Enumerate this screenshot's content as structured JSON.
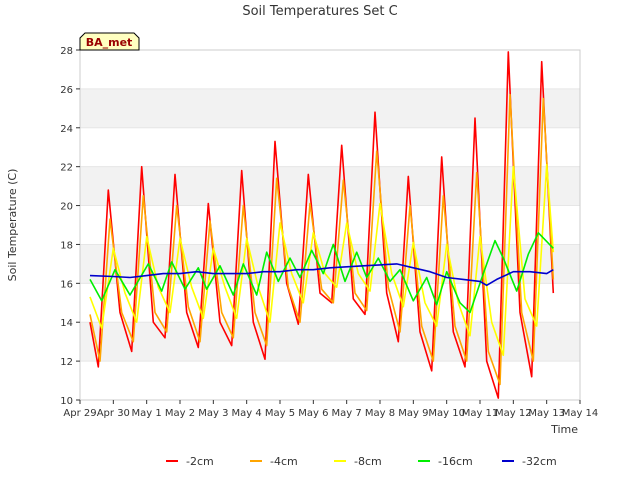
{
  "chart_data": {
    "type": "line",
    "title": "Soil Temperatures Set C",
    "xlabel": "Time",
    "ylabel": "Soil Temperature (C)",
    "ylim": [
      10,
      28
    ],
    "yticks": [
      10,
      12,
      14,
      16,
      18,
      20,
      22,
      24,
      26,
      28
    ],
    "xlim": [
      0,
      15
    ],
    "xticks": [
      0,
      1,
      2,
      3,
      4,
      5,
      6,
      7,
      8,
      9,
      10,
      11,
      12,
      13,
      14,
      15
    ],
    "xtick_labels": [
      "Apr 29",
      "Apr 30",
      "May 1",
      "May 2",
      "May 3",
      "May 4",
      "May 5",
      "May 6",
      "May 7",
      "May 8",
      "May 9",
      "May 10",
      "May 11",
      "May 12",
      "May 13",
      "May 14"
    ],
    "station_label": "BA_met",
    "grid": "horizontal bands",
    "legend_position": "bottom",
    "series": [
      {
        "name": "-2cm",
        "color": "#ff0000",
        "x": [
          0.3,
          0.55,
          0.85,
          1.2,
          1.55,
          1.85,
          2.2,
          2.55,
          2.85,
          3.2,
          3.55,
          3.85,
          4.2,
          4.55,
          4.85,
          5.2,
          5.55,
          5.85,
          6.2,
          6.55,
          6.85,
          7.2,
          7.55,
          7.85,
          8.2,
          8.55,
          8.85,
          9.2,
          9.55,
          9.85,
          10.2,
          10.55,
          10.85,
          11.2,
          11.55,
          11.85,
          12.2,
          12.55,
          12.85,
          13.2,
          13.55,
          13.85,
          14.2
        ],
        "values": [
          14.0,
          11.7,
          20.8,
          14.5,
          12.5,
          22.0,
          14.0,
          13.2,
          21.6,
          14.5,
          12.7,
          20.1,
          14.0,
          12.8,
          21.8,
          14.0,
          12.1,
          23.3,
          16.0,
          13.9,
          21.6,
          15.5,
          15.0,
          23.1,
          15.2,
          14.4,
          24.8,
          15.5,
          13.0,
          21.5,
          13.5,
          11.5,
          22.5,
          13.5,
          11.7,
          24.5,
          12.0,
          10.1,
          27.9,
          14.5,
          11.2,
          27.4,
          15.5
        ]
      },
      {
        "name": "-4cm",
        "color": "#ffa500",
        "x": [
          0.3,
          0.6,
          0.9,
          1.25,
          1.6,
          1.9,
          2.25,
          2.6,
          2.9,
          3.25,
          3.6,
          3.9,
          4.25,
          4.6,
          4.9,
          5.25,
          5.6,
          5.9,
          6.25,
          6.6,
          6.9,
          7.25,
          7.6,
          7.9,
          8.25,
          8.6,
          8.9,
          9.25,
          9.6,
          9.9,
          10.25,
          10.6,
          10.9,
          11.25,
          11.6,
          11.9,
          12.25,
          12.6,
          12.9,
          13.25,
          13.6,
          13.9,
          14.2
        ],
        "values": [
          14.4,
          12.0,
          19.3,
          14.5,
          13.0,
          20.5,
          14.5,
          13.5,
          20.0,
          14.8,
          13.0,
          19.2,
          14.5,
          13.2,
          20.0,
          14.5,
          12.8,
          21.4,
          15.8,
          14.0,
          20.1,
          15.7,
          15.0,
          21.3,
          15.5,
          14.6,
          22.8,
          15.8,
          13.5,
          20.0,
          13.8,
          12.0,
          20.5,
          13.8,
          12.0,
          21.7,
          12.5,
          10.8,
          25.7,
          14.5,
          12.0,
          25.5,
          16.2
        ]
      },
      {
        "name": "-8cm",
        "color": "#ffff00",
        "x": [
          0.3,
          0.65,
          1.0,
          1.35,
          1.7,
          2.0,
          2.35,
          2.7,
          3.0,
          3.35,
          3.7,
          4.0,
          4.35,
          4.7,
          5.0,
          5.35,
          5.7,
          6.0,
          6.35,
          6.7,
          7.0,
          7.35,
          7.7,
          8.0,
          8.35,
          8.7,
          9.0,
          9.35,
          9.7,
          10.0,
          10.35,
          10.7,
          11.0,
          11.35,
          11.7,
          12.0,
          12.35,
          12.7,
          13.0,
          13.35,
          13.7,
          14.0,
          14.2
        ],
        "values": [
          15.3,
          13.7,
          17.8,
          15.5,
          14.0,
          18.4,
          15.8,
          14.5,
          18.3,
          15.8,
          14.2,
          17.8,
          15.8,
          14.2,
          18.3,
          15.8,
          14.0,
          19.1,
          16.5,
          15.0,
          18.6,
          16.5,
          15.8,
          19.1,
          16.5,
          15.6,
          20.1,
          16.5,
          14.8,
          18.1,
          15.0,
          13.8,
          18.0,
          15.0,
          13.3,
          18.4,
          14.0,
          12.3,
          22.0,
          15.2,
          13.8,
          22.1,
          17.6
        ]
      },
      {
        "name": "-16cm",
        "color": "#00ee00",
        "x": [
          0.3,
          0.65,
          1.05,
          1.5,
          2.05,
          2.45,
          2.75,
          3.15,
          3.55,
          3.8,
          4.2,
          4.6,
          4.9,
          5.3,
          5.6,
          5.95,
          6.3,
          6.6,
          6.95,
          7.3,
          7.6,
          7.95,
          8.3,
          8.6,
          8.95,
          9.3,
          9.6,
          10.0,
          10.4,
          10.7,
          11.0,
          11.4,
          11.7,
          12.1,
          12.45,
          12.7,
          13.1,
          13.45,
          13.75,
          14.2
        ],
        "values": [
          16.2,
          15.1,
          16.7,
          15.4,
          17.0,
          15.6,
          17.1,
          15.7,
          16.8,
          15.7,
          16.9,
          15.4,
          17.0,
          15.4,
          17.6,
          16.1,
          17.3,
          16.3,
          17.7,
          16.5,
          18.0,
          16.1,
          17.6,
          16.3,
          17.3,
          16.1,
          16.7,
          15.1,
          16.3,
          14.9,
          16.6,
          15.0,
          14.5,
          16.5,
          18.2,
          17.3,
          15.6,
          17.5,
          18.6,
          17.8
        ]
      },
      {
        "name": "-32cm",
        "color": "#0000cc",
        "x": [
          0.3,
          1.0,
          1.5,
          2.0,
          2.5,
          3.0,
          3.5,
          4.0,
          4.5,
          5.0,
          5.5,
          6.0,
          6.5,
          7.0,
          7.5,
          8.0,
          8.5,
          9.0,
          9.5,
          10.0,
          10.5,
          11.0,
          11.5,
          12.0,
          12.2,
          12.5,
          13.0,
          13.5,
          14.0,
          14.2
        ],
        "values": [
          16.4,
          16.35,
          16.3,
          16.4,
          16.5,
          16.5,
          16.6,
          16.5,
          16.5,
          16.5,
          16.6,
          16.6,
          16.7,
          16.7,
          16.8,
          16.85,
          16.9,
          16.95,
          17.0,
          16.8,
          16.6,
          16.3,
          16.2,
          16.1,
          15.9,
          16.2,
          16.6,
          16.6,
          16.5,
          16.7
        ]
      }
    ]
  }
}
